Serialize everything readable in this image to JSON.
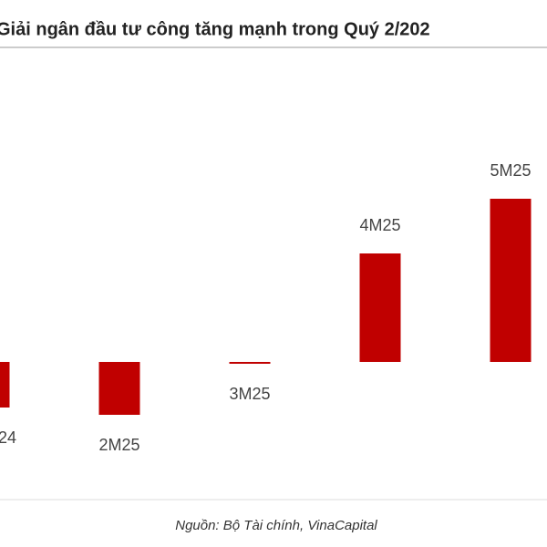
{
  "chart_data": {
    "type": "bar",
    "title": "Giải ngân đầu tư công tăng mạnh trong Quý 2/202",
    "categories": [
      "24",
      "2M25",
      "3M25",
      "4M25",
      "5M25"
    ],
    "values": [
      -5.0,
      -5.8,
      -0.2,
      11.9,
      17.9
    ],
    "color": "#c00000",
    "source": "Nguồn: Bộ Tài chính, VinaCapital"
  }
}
